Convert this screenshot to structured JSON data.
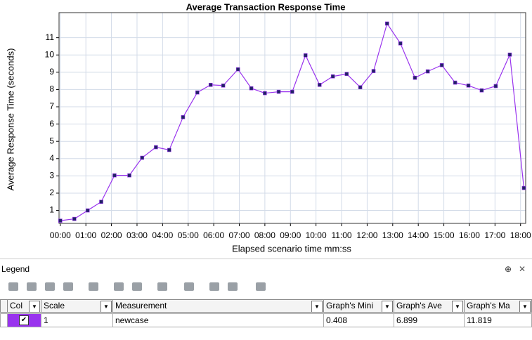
{
  "chart_data": {
    "type": "line",
    "title": "Average Transaction Response Time",
    "x_label": "Elapsed scenario time mm:ss",
    "y_label": "Average Response Time (seconds)",
    "x": [
      0,
      0.55,
      1.07,
      1.6,
      2.12,
      2.7,
      3.2,
      3.74,
      4.26,
      4.8,
      5.36,
      5.88,
      6.37,
      6.95,
      7.47,
      8.0,
      8.54,
      9.07,
      9.59,
      10.14,
      10.66,
      11.2,
      11.73,
      12.25,
      12.78,
      13.3,
      13.87,
      14.37,
      14.92,
      15.44,
      15.96,
      16.48,
      17.03,
      17.58,
      18.13
    ],
    "series": [
      {
        "name": "newcase",
        "color": "#9933ee",
        "values": [
          0.408,
          0.51,
          1.0,
          1.5,
          3.03,
          3.03,
          4.05,
          4.66,
          4.5,
          6.4,
          7.83,
          8.27,
          8.23,
          9.17,
          8.07,
          7.79,
          7.87,
          7.87,
          9.98,
          8.27,
          8.76,
          8.9,
          8.13,
          9.07,
          11.819,
          10.67,
          8.68,
          9.05,
          9.41,
          8.4,
          8.23,
          7.95,
          8.2,
          10.02,
          2.3
        ]
      }
    ],
    "xlim": [
      -0.05,
      18.2
    ],
    "ylim": [
      0.25,
      12.45
    ],
    "xticks": [
      {
        "value": 0,
        "label": "00:00"
      },
      {
        "value": 1,
        "label": "01:00"
      },
      {
        "value": 2,
        "label": "02:00"
      },
      {
        "value": 3,
        "label": "03:00"
      },
      {
        "value": 4,
        "label": "04:00"
      },
      {
        "value": 5,
        "label": "05:00"
      },
      {
        "value": 6,
        "label": "06:00"
      },
      {
        "value": 7,
        "label": "07:00"
      },
      {
        "value": 8,
        "label": "08:00"
      },
      {
        "value": 9,
        "label": "09:00"
      },
      {
        "value": 10,
        "label": "10:00"
      },
      {
        "value": 11,
        "label": "11:00"
      },
      {
        "value": 12,
        "label": "12:00"
      },
      {
        "value": 13,
        "label": "13:00"
      },
      {
        "value": 14,
        "label": "14:00"
      },
      {
        "value": 15,
        "label": "15:00"
      },
      {
        "value": 16,
        "label": "16:00"
      },
      {
        "value": 17,
        "label": "17:00"
      },
      {
        "value": 18,
        "label": "18:00"
      }
    ],
    "yticks": [
      1,
      2,
      3,
      4,
      5,
      6,
      7,
      8,
      9,
      10,
      11
    ],
    "grid": true
  },
  "legend_panel": {
    "title": "Legend",
    "columns": [
      "Col",
      "Scale",
      "Measurement",
      "Graph's Mini",
      "Graph's Ave",
      "Graph's Ma"
    ],
    "rows": [
      {
        "scale": "1",
        "measurement": "newcase",
        "min": "0.408",
        "avg": "6.899",
        "max": "11.819"
      }
    ]
  }
}
